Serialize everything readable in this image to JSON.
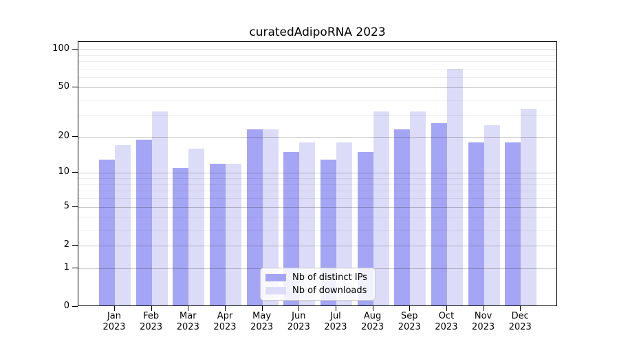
{
  "figure": {
    "title": "curatedAdipoRNA 2023"
  },
  "chart_data": {
    "type": "bar",
    "title": "curatedAdipoRNA 2023",
    "categories": [
      "Jan 2023",
      "Feb 2023",
      "Mar 2023",
      "Apr 2023",
      "May 2023",
      "Jun 2023",
      "Jul 2023",
      "Aug 2023",
      "Sep 2023",
      "Oct 2023",
      "Nov 2023",
      "Dec 2023"
    ],
    "months": [
      "Jan",
      "Feb",
      "Mar",
      "Apr",
      "May",
      "Jun",
      "Jul",
      "Aug",
      "Sep",
      "Oct",
      "Nov",
      "Dec"
    ],
    "year_label": "2023",
    "series": [
      {
        "name": "Nb of distinct IPs",
        "color": "#a5a5f5",
        "values": [
          13,
          19,
          11,
          12,
          23,
          15,
          13,
          15,
          23,
          26,
          18,
          18
        ]
      },
      {
        "name": "Nb of downloads",
        "color": "#dcdcf9",
        "values": [
          17,
          32,
          16,
          12,
          23,
          18,
          18,
          32,
          32,
          70,
          25,
          34
        ]
      }
    ],
    "yscale": "log1p",
    "y_major_ticks": [
      0,
      1,
      2,
      5,
      10,
      20,
      50,
      100
    ],
    "y_minor_ticks": [
      3,
      4,
      6,
      7,
      8,
      9,
      30,
      40,
      60,
      70,
      80,
      90
    ],
    "ylim": [
      0,
      114
    ],
    "xlabel": "",
    "ylabel": "",
    "grid": true,
    "legend_position": "lower center"
  }
}
